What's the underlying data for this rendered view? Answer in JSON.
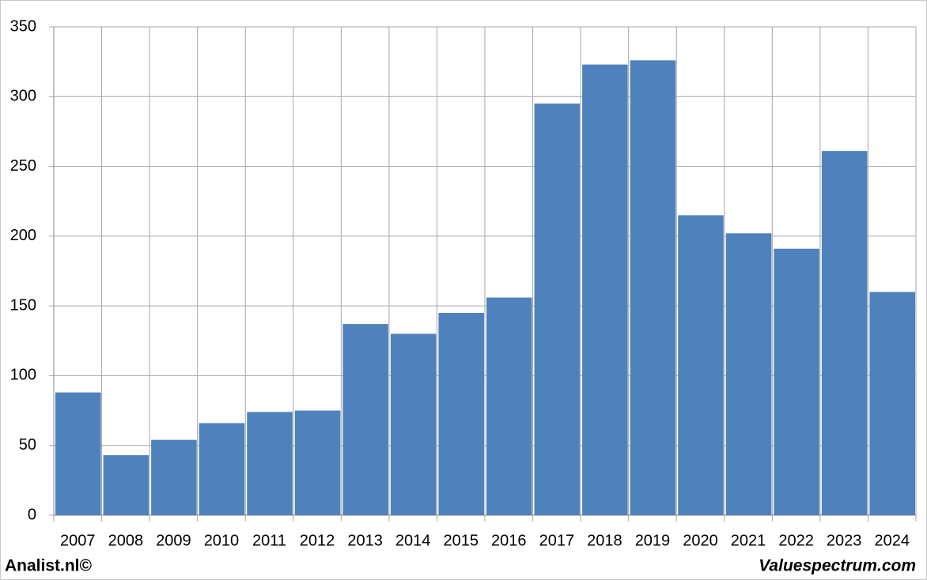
{
  "chart_data": {
    "type": "bar",
    "categories": [
      "2007",
      "2008",
      "2009",
      "2010",
      "2011",
      "2012",
      "2013",
      "2014",
      "2015",
      "2016",
      "2017",
      "2018",
      "2019",
      "2020",
      "2021",
      "2022",
      "2023",
      "2024"
    ],
    "values": [
      88,
      43,
      54,
      66,
      74,
      75,
      137,
      130,
      145,
      156,
      295,
      323,
      326,
      215,
      202,
      191,
      261,
      160
    ],
    "color": "#4f81bd",
    "ylim": [
      0,
      350
    ],
    "yticks": [
      0,
      50,
      100,
      150,
      200,
      250,
      300,
      350
    ],
    "grid": true,
    "credit_left": "Analist.nl©",
    "credit_right": "Valuespectrum.com"
  }
}
